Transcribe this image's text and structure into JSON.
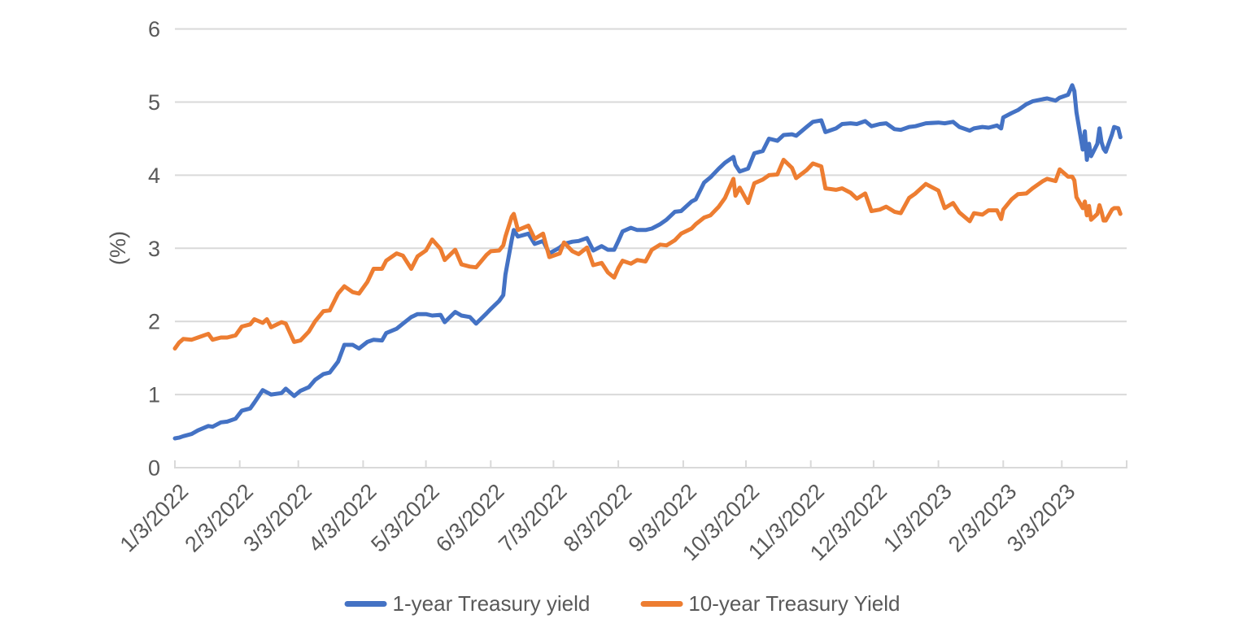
{
  "chart_data": {
    "type": "line",
    "title": "",
    "xlabel": "",
    "ylabel": "(%)",
    "ylim": [
      0,
      6
    ],
    "y_ticks": [
      0,
      1,
      2,
      3,
      4,
      5,
      6
    ],
    "grid": true,
    "legend_position": "bottom",
    "x_unit": "days since 1/3/2022",
    "x_domain_days": [
      0,
      455
    ],
    "x_ticks": [
      {
        "label": "1/3/2022",
        "day": 0
      },
      {
        "label": "2/3/2022",
        "day": 31
      },
      {
        "label": "3/3/2022",
        "day": 59
      },
      {
        "label": "4/3/2022",
        "day": 90
      },
      {
        "label": "5/3/2022",
        "day": 120
      },
      {
        "label": "6/3/2022",
        "day": 151
      },
      {
        "label": "7/3/2022",
        "day": 181
      },
      {
        "label": "8/3/2022",
        "day": 212
      },
      {
        "label": "9/3/2022",
        "day": 243
      },
      {
        "label": "10/3/2022",
        "day": 273
      },
      {
        "label": "11/3/2022",
        "day": 304
      },
      {
        "label": "12/3/2022",
        "day": 334
      },
      {
        "label": "1/3/2023",
        "day": 365
      },
      {
        "label": "2/3/2023",
        "day": 396
      },
      {
        "label": "3/3/2023",
        "day": 424
      }
    ],
    "colors": {
      "grid": "#D9D9D9",
      "axis_text": "#595959"
    },
    "x_days": [
      0,
      2,
      4,
      8,
      11,
      16,
      18,
      22,
      25,
      29,
      32,
      36,
      38,
      42,
      44,
      46,
      51,
      53,
      57,
      60,
      64,
      67,
      71,
      74,
      78,
      81,
      85,
      88,
      92,
      95,
      99,
      101,
      106,
      109,
      113,
      116,
      120,
      123,
      127,
      129,
      134,
      137,
      141,
      144,
      149,
      151,
      155,
      157,
      158,
      161,
      162,
      164,
      169,
      172,
      176,
      179,
      184,
      186,
      190,
      193,
      197,
      200,
      204,
      207,
      210,
      212,
      214,
      218,
      221,
      225,
      228,
      232,
      235,
      239,
      242,
      247,
      249,
      253,
      256,
      260,
      263,
      267,
      268,
      270,
      274,
      277,
      281,
      284,
      288,
      291,
      295,
      297,
      302,
      305,
      309,
      311,
      316,
      319,
      323,
      326,
      330,
      333,
      337,
      340,
      344,
      347,
      351,
      354,
      359,
      365,
      368,
      372,
      375,
      380,
      382,
      386,
      389,
      393,
      395,
      396,
      400,
      403,
      407,
      410,
      415,
      417,
      421,
      423,
      427,
      429,
      430,
      431,
      434,
      435,
      436,
      437,
      438,
      441,
      442,
      443,
      444,
      445,
      448,
      449,
      451,
      452
    ],
    "series": [
      {
        "name": "1-year Treasury yield",
        "color": "#4472C4",
        "values": [
          0.4,
          0.41,
          0.43,
          0.46,
          0.51,
          0.57,
          0.56,
          0.62,
          0.63,
          0.67,
          0.78,
          0.81,
          0.89,
          1.06,
          1.03,
          1.0,
          1.02,
          1.08,
          0.98,
          1.05,
          1.1,
          1.2,
          1.28,
          1.3,
          1.45,
          1.68,
          1.68,
          1.63,
          1.72,
          1.75,
          1.74,
          1.84,
          1.9,
          1.97,
          2.06,
          2.1,
          2.1,
          2.08,
          2.09,
          1.99,
          2.13,
          2.08,
          2.06,
          1.97,
          2.11,
          2.17,
          2.28,
          2.36,
          2.64,
          3.11,
          3.25,
          3.16,
          3.2,
          3.06,
          3.1,
          2.93,
          3.01,
          3.06,
          3.09,
          3.1,
          3.14,
          2.97,
          3.03,
          2.98,
          2.98,
          3.1,
          3.23,
          3.28,
          3.25,
          3.25,
          3.27,
          3.33,
          3.39,
          3.5,
          3.51,
          3.64,
          3.67,
          3.9,
          3.97,
          4.09,
          4.17,
          4.25,
          4.14,
          4.05,
          4.09,
          4.3,
          4.33,
          4.5,
          4.47,
          4.55,
          4.56,
          4.54,
          4.66,
          4.73,
          4.75,
          4.59,
          4.64,
          4.7,
          4.71,
          4.7,
          4.74,
          4.67,
          4.7,
          4.71,
          4.63,
          4.62,
          4.66,
          4.67,
          4.71,
          4.72,
          4.71,
          4.73,
          4.66,
          4.61,
          4.64,
          4.66,
          4.65,
          4.68,
          4.64,
          4.79,
          4.85,
          4.89,
          4.97,
          5.01,
          5.04,
          5.05,
          5.02,
          5.06,
          5.1,
          5.23,
          5.15,
          4.86,
          4.35,
          4.6,
          4.21,
          4.43,
          4.26,
          4.43,
          4.64,
          4.45,
          4.36,
          4.32,
          4.56,
          4.66,
          4.64,
          4.52
        ]
      },
      {
        "name": "10-year Treasury Yield",
        "color": "#ED7D31",
        "values": [
          1.63,
          1.71,
          1.76,
          1.75,
          1.78,
          1.83,
          1.75,
          1.78,
          1.78,
          1.81,
          1.93,
          1.96,
          2.03,
          1.98,
          2.03,
          1.92,
          1.99,
          1.97,
          1.72,
          1.74,
          1.86,
          2.0,
          2.14,
          2.15,
          2.38,
          2.48,
          2.4,
          2.38,
          2.54,
          2.72,
          2.72,
          2.83,
          2.93,
          2.9,
          2.72,
          2.89,
          2.97,
          3.12,
          2.99,
          2.84,
          2.98,
          2.78,
          2.75,
          2.74,
          2.91,
          2.96,
          2.97,
          3.04,
          3.16,
          3.43,
          3.47,
          3.25,
          3.31,
          3.13,
          3.2,
          2.88,
          2.93,
          3.08,
          2.96,
          2.92,
          3.01,
          2.77,
          2.8,
          2.67,
          2.6,
          2.73,
          2.83,
          2.79,
          2.84,
          2.82,
          2.98,
          3.05,
          3.04,
          3.11,
          3.2,
          3.27,
          3.33,
          3.42,
          3.45,
          3.57,
          3.69,
          3.95,
          3.72,
          3.83,
          3.62,
          3.89,
          3.94,
          4.0,
          4.01,
          4.21,
          4.1,
          3.96,
          4.07,
          4.16,
          4.12,
          3.82,
          3.8,
          3.82,
          3.76,
          3.68,
          3.75,
          3.51,
          3.53,
          3.57,
          3.5,
          3.48,
          3.69,
          3.75,
          3.88,
          3.79,
          3.55,
          3.62,
          3.49,
          3.37,
          3.48,
          3.46,
          3.52,
          3.52,
          3.4,
          3.53,
          3.67,
          3.74,
          3.75,
          3.82,
          3.92,
          3.95,
          3.92,
          4.08,
          3.98,
          3.98,
          3.93,
          3.7,
          3.55,
          3.64,
          3.45,
          3.58,
          3.39,
          3.47,
          3.59,
          3.5,
          3.38,
          3.38,
          3.53,
          3.55,
          3.55,
          3.47
        ]
      }
    ]
  }
}
